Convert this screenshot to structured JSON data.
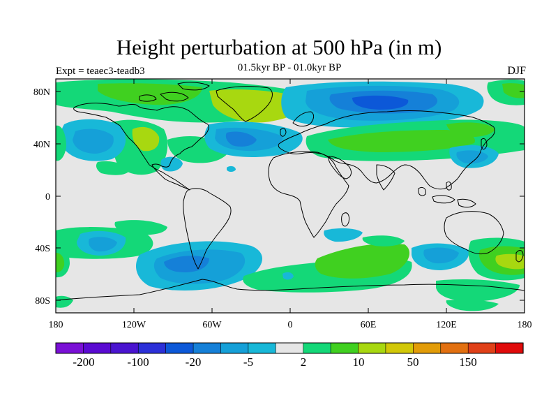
{
  "map": {
    "title": "Height perturbation at 500 hPa (in m)",
    "subtitle": "01.5kyr BP - 01.0kyr BP",
    "experiment": "Expt = teaec3-teadb3",
    "season": "DJF",
    "lon_ticks": [
      "180",
      "120W",
      "60W",
      "0",
      "60E",
      "120E",
      "180"
    ],
    "lat_ticks": [
      "80N",
      "40N",
      "0",
      "40S",
      "80S"
    ],
    "lon_range": [
      -180,
      180
    ],
    "lat_range": [
      -90,
      90
    ],
    "background_color": "#e6e6e6"
  },
  "colorbar": {
    "colors": [
      "#7a10d6",
      "#5a0ad2",
      "#4a14d0",
      "#2c30d8",
      "#0c58d8",
      "#1580d8",
      "#15a0d8",
      "#18b8d8",
      "#e6e6e6",
      "#14d878",
      "#40d020",
      "#a8d810",
      "#d2c808",
      "#e29c08",
      "#e27010",
      "#e04018",
      "#e00a0a"
    ],
    "labels": [
      "-200",
      "-100",
      "-20",
      "-5",
      "2",
      "10",
      "50",
      "150"
    ],
    "label_boundaries": [
      1,
      3,
      5,
      7,
      9,
      11,
      13,
      15
    ]
  }
}
